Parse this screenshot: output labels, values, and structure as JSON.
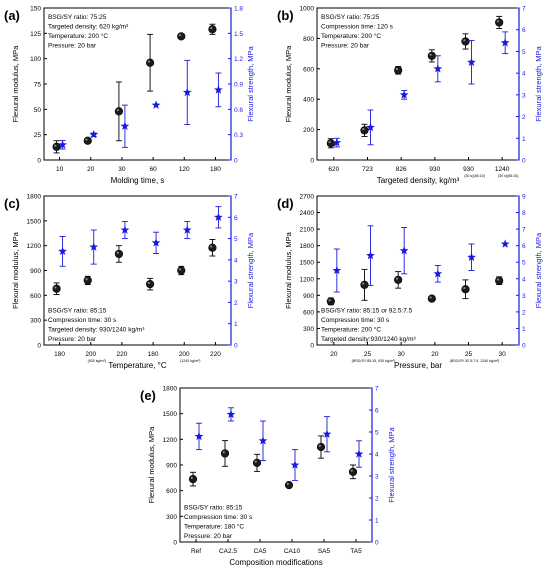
{
  "colors": {
    "modulus": "#000000",
    "strength": "#1a1adc",
    "axis": "#000000",
    "text": "#000000"
  },
  "chart_data": [
    {
      "panel": "(a)",
      "type": "scatter",
      "categories": [
        "10",
        "20",
        "30",
        "60",
        "120",
        "180"
      ],
      "xlabel": "Molding time, s",
      "ylabel": "Flexural modulus, MPa",
      "y2label": "Flexural strength, MPa",
      "ylim": [
        0,
        150
      ],
      "yticks": [
        0,
        25,
        50,
        75,
        100,
        125,
        150
      ],
      "y2lim": [
        0,
        1.8
      ],
      "y2ticks": [
        "0",
        "0.3",
        "0.6",
        "0.9",
        "1.2",
        "1.5",
        "1.8"
      ],
      "annotations": [
        "BSG/SY ratio: 75:25",
        "Targeted density: 620 kg/m³",
        "Temperature: 200 °C",
        "Pressure: 20 bar"
      ],
      "x_sublabels": [
        "",
        "",
        "",
        "",
        "",
        ""
      ],
      "series": [
        {
          "name": "Flexural modulus",
          "axis": "left",
          "marker": "circle",
          "values": [
            13,
            19,
            48,
            96,
            122,
            129
          ],
          "errors": [
            6,
            2,
            29,
            28,
            0,
            5
          ]
        },
        {
          "name": "Flexural strength",
          "axis": "right",
          "marker": "star",
          "values": [
            0.18,
            0.3,
            0.4,
            0.65,
            0.8,
            0.83
          ],
          "errors": [
            0.05,
            0.02,
            0.25,
            0,
            0.38,
            0.2
          ]
        }
      ]
    },
    {
      "panel": "(b)",
      "type": "scatter",
      "categories": [
        "620",
        "723",
        "826",
        "930",
        "930",
        "1240"
      ],
      "xlabel": "Targeted density, kg/m³",
      "ylabel": "Flexural modulus, MPa",
      "y2label": "Flexural strength, MPa",
      "ylim": [
        0,
        1000
      ],
      "yticks": [
        0,
        200,
        400,
        600,
        800,
        1000
      ],
      "y2lim": [
        0,
        7
      ],
      "y2ticks": [
        "0",
        "1",
        "2",
        "3",
        "4",
        "5",
        "6",
        "7"
      ],
      "annotations": [
        "BSG/SY ratio: 75:25",
        "Compression time: 120 s",
        "Temperature: 200 °C",
        "Pressure: 20 bar"
      ],
      "x_sublabels": [
        "",
        "",
        "",
        "",
        "(30 s)(85:15)",
        "(30 s)(85:15)"
      ],
      "series": [
        {
          "name": "Flexural modulus",
          "axis": "left",
          "marker": "circle",
          "values": [
            110,
            195,
            590,
            685,
            780,
            905
          ],
          "errors": [
            30,
            40,
            25,
            40,
            50,
            40
          ]
        },
        {
          "name": "Flexural strength",
          "axis": "right",
          "marker": "star",
          "values": [
            0.8,
            1.5,
            3.0,
            4.2,
            4.5,
            5.4
          ],
          "errors": [
            0.2,
            0.8,
            0.2,
            0.6,
            1.0,
            0.5
          ]
        }
      ]
    },
    {
      "panel": "(c)",
      "type": "scatter",
      "categories": [
        "180",
        "200",
        "220",
        "180",
        "200",
        "220"
      ],
      "xlabel": "Temperature, °C",
      "ylabel": "Flexural modulus, MPa",
      "y2label": "Flexural strength, MPa",
      "ylim": [
        0,
        1800
      ],
      "yticks": [
        0,
        300,
        600,
        900,
        1200,
        1500,
        1800
      ],
      "y2lim": [
        0,
        7
      ],
      "y2ticks": [
        "0",
        "1",
        "2",
        "3",
        "4",
        "5",
        "6",
        "7"
      ],
      "annotations": [
        "BSG/SY ratio: 85:15",
        "Compression time: 30 s",
        "Targeted density: 930/1240 kg/m³",
        "Pressure: 20 bar"
      ],
      "x_sublabels": [
        "",
        "(930 kg/m³)",
        "",
        "",
        "(1240 kg/m³)",
        ""
      ],
      "series": [
        {
          "name": "Flexural modulus",
          "axis": "left",
          "marker": "circle",
          "values": [
            680,
            780,
            1100,
            735,
            900,
            1175
          ],
          "errors": [
            70,
            50,
            100,
            70,
            50,
            100
          ]
        },
        {
          "name": "Flexural strength",
          "axis": "right",
          "marker": "star",
          "values": [
            4.4,
            4.6,
            5.4,
            4.8,
            5.4,
            6.0
          ],
          "errors": [
            0.7,
            0.8,
            0.4,
            0.5,
            0.4,
            0.5
          ]
        }
      ]
    },
    {
      "panel": "(d)",
      "type": "scatter",
      "categories": [
        "20",
        "25",
        "30",
        "20",
        "25",
        "30"
      ],
      "xlabel": "Pressure, bar",
      "ylabel": "Flexural modulus, MPa",
      "y2label": "Flexural strength, MPa",
      "ylim": [
        0,
        2700
      ],
      "yticks": [
        0,
        300,
        600,
        900,
        1200,
        1500,
        1800,
        2100,
        2400,
        2700
      ],
      "y2lim": [
        0,
        9
      ],
      "y2ticks": [
        "0",
        "1",
        "2",
        "3",
        "4",
        "5",
        "6",
        "7",
        "8",
        "9"
      ],
      "annotations": [
        "BSG/SY ratio: 85:15 or 92.5:7.5",
        "Compression time: 30 s",
        "Temperature: 200 °C",
        "Targeted density:930/1240 kg/m³"
      ],
      "x_sublabels": [
        "",
        "(BSG/SY 85:15, 930 kg/m³)",
        "",
        "",
        "(BSG/SY 92.5:7.5, 1240 kg/m³)",
        ""
      ],
      "series": [
        {
          "name": "Flexural modulus",
          "axis": "left",
          "marker": "circle",
          "values": [
            790,
            1090,
            1180,
            840,
            1010,
            1165
          ],
          "errors": [
            60,
            280,
            150,
            40,
            170,
            70
          ]
        },
        {
          "name": "Flexural strength",
          "axis": "right",
          "marker": "star",
          "values": [
            4.5,
            5.4,
            5.7,
            4.3,
            5.3,
            6.1
          ],
          "errors": [
            1.3,
            1.8,
            1.4,
            0.5,
            0.8,
            0
          ]
        }
      ]
    },
    {
      "panel": "(e)",
      "type": "scatter",
      "categories": [
        "Ref",
        "CA2.5",
        "CA5",
        "CA10",
        "SA5",
        "TA5"
      ],
      "xlabel": "Composition modifications",
      "ylabel": "Flexural modulus, MPa",
      "y2label": "Flexural strength, MPa",
      "ylim": [
        0,
        1800
      ],
      "yticks": [
        0,
        300,
        600,
        900,
        1200,
        1500,
        1800
      ],
      "y2lim": [
        0,
        7
      ],
      "y2ticks": [
        "0",
        "1",
        "2",
        "3",
        "4",
        "5",
        "6",
        "7"
      ],
      "annotations": [
        "BSG/SY ratio: 85:15",
        "Compression time: 30 s",
        "Temperature: 180 °C",
        "Pressure: 20 bar"
      ],
      "x_sublabels": [
        "",
        "",
        "",
        "",
        "",
        ""
      ],
      "series": [
        {
          "name": "Flexural modulus",
          "axis": "left",
          "marker": "circle",
          "values": [
            735,
            1035,
            925,
            665,
            1110,
            820
          ],
          "errors": [
            80,
            150,
            100,
            0,
            130,
            80
          ]
        },
        {
          "name": "Flexural strength",
          "axis": "right",
          "marker": "star",
          "values": [
            4.8,
            5.8,
            4.6,
            3.5,
            4.9,
            4.0
          ],
          "errors": [
            0.6,
            0.3,
            0.9,
            0.7,
            0.8,
            0.6
          ]
        }
      ]
    }
  ]
}
